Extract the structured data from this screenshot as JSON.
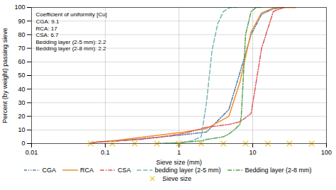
{
  "chart_data": {
    "type": "line",
    "xlabel": "Sieve size (mm)",
    "ylabel": "Percent (by weight) passing sieve",
    "log": "x",
    "xlim": [
      0.01,
      100
    ],
    "ylim": [
      0,
      100
    ],
    "xticks": [
      0.01,
      0.1,
      1,
      10,
      100
    ],
    "yticks": [
      0,
      10,
      20,
      30,
      40,
      50,
      60,
      70,
      80,
      90,
      100
    ],
    "grid": true,
    "legend": "bottom",
    "annotation": "Coefficient of uniformity [Cu]\nCGA: 9.1\nRCA: 17\nCSA: 6.7\nBedding layer (2-5 mm): 2.2\nBedding layer (2-8 mm): 2.2",
    "series": [
      {
        "name": "CGA",
        "line_style": "dashdotdot",
        "x": [
          0.063,
          0.075,
          0.15,
          0.3,
          0.6,
          1.18,
          2.36,
          4.75,
          6.7,
          9.5,
          13.2,
          19.0,
          26.5,
          37.5
        ],
        "values": [
          0.5,
          1.0,
          2.0,
          3.5,
          5.0,
          6.5,
          8.5,
          25.0,
          52.0,
          80.0,
          95.0,
          99.0,
          100.0,
          100.0
        ]
      },
      {
        "name": "RCA",
        "line_style": "solid",
        "x": [
          0.063,
          0.075,
          0.15,
          0.3,
          0.6,
          1.18,
          2.36,
          4.75,
          6.7,
          9.5,
          13.2,
          19.0,
          26.5,
          37.5
        ],
        "values": [
          0.5,
          1.0,
          2.5,
          4.5,
          6.5,
          8.5,
          11.0,
          20.0,
          45.0,
          82.0,
          96.0,
          99.5,
          100.0,
          100.0
        ]
      },
      {
        "name": "CSA",
        "line_style": "dashdot",
        "x": [
          0.063,
          0.075,
          0.15,
          0.3,
          0.6,
          1.18,
          2.36,
          4.75,
          6.7,
          9.5,
          13.2,
          19.0,
          26.5
        ],
        "values": [
          0.5,
          1.0,
          2.0,
          3.0,
          5.0,
          7.5,
          12.0,
          14.0,
          16.0,
          22.0,
          70.0,
          97.0,
          100.0
        ]
      },
      {
        "name": "bedding layer (2-5 mm)",
        "line_style": "dashed",
        "x": [
          0.5,
          1.0,
          1.18,
          1.5,
          2.0,
          2.36,
          2.8,
          3.35,
          4.0,
          4.75,
          5.0,
          6.0
        ],
        "values": [
          0.0,
          0.5,
          1.0,
          2.0,
          5.0,
          30.0,
          68.0,
          88.0,
          97.0,
          99.5,
          100.0,
          100.0
        ]
      },
      {
        "name": "Bedding layer (2-8 mm)",
        "line_style": "dashdot",
        "x": [
          0.5,
          1.0,
          1.18,
          2.0,
          2.36,
          4.0,
          4.75,
          5.6,
          6.7,
          7.0,
          8.0,
          9.5,
          11.2,
          13.0
        ],
        "values": [
          0.0,
          0.5,
          1.0,
          2.0,
          3.0,
          5.0,
          7.0,
          10.0,
          14.0,
          20.0,
          80.0,
          97.0,
          100.0,
          100.0
        ]
      },
      {
        "name": "Sieve size",
        "type": "scatter",
        "marker": "x",
        "x": [
          0.063,
          0.125,
          0.25,
          0.5,
          1.0,
          2.0,
          4.0,
          8.0,
          16.0,
          31.5,
          63.0
        ],
        "values": [
          0,
          0,
          0,
          0,
          0,
          0,
          0,
          0,
          0,
          0,
          0
        ]
      }
    ]
  }
}
